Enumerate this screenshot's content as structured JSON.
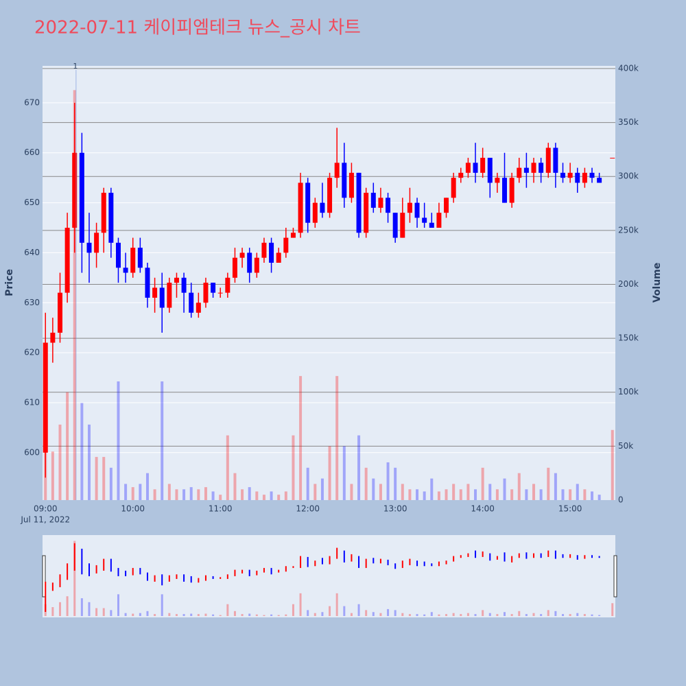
{
  "chart_data": {
    "type": "candlestick",
    "title": "2022-07-11 케이피엠테크 뉴스_공시 차트",
    "title_color": "#ef4a5b",
    "y_title": "Price",
    "y2_title": "Volume",
    "x_date_label": "Jul 11, 2022",
    "increasing_color": "#ff0000",
    "decreasing_color": "#0000ff",
    "x": [
      "09:00",
      "09:05",
      "09:10",
      "09:15",
      "09:20",
      "09:25",
      "09:30",
      "09:35",
      "09:40",
      "09:45",
      "09:50",
      "09:55",
      "10:00",
      "10:05",
      "10:10",
      "10:15",
      "10:20",
      "10:25",
      "10:30",
      "10:35",
      "10:40",
      "10:45",
      "10:50",
      "10:55",
      "11:00",
      "11:05",
      "11:10",
      "11:15",
      "11:20",
      "11:25",
      "11:30",
      "11:35",
      "11:40",
      "11:45",
      "11:50",
      "11:55",
      "12:00",
      "12:05",
      "12:10",
      "12:15",
      "12:20",
      "12:25",
      "12:30",
      "12:35",
      "12:40",
      "12:45",
      "12:50",
      "12:55",
      "13:00",
      "13:05",
      "13:10",
      "13:15",
      "13:20",
      "13:25",
      "13:30",
      "13:35",
      "13:40",
      "13:45",
      "13:50",
      "13:55",
      "14:00",
      "14:05",
      "14:10",
      "14:15",
      "14:20",
      "14:25",
      "14:30",
      "14:35",
      "14:40",
      "14:45",
      "14:50",
      "14:55",
      "15:00",
      "15:05",
      "15:10",
      "15:15",
      "15:20",
      "15:29"
    ],
    "open": [
      600,
      622,
      624,
      632,
      645,
      660,
      642,
      640,
      644,
      652,
      642,
      637,
      636,
      641,
      637,
      631,
      633,
      629,
      634,
      635,
      632,
      628,
      630,
      634,
      632,
      632,
      635,
      639,
      640,
      636,
      639,
      642,
      638,
      640,
      643,
      644,
      654,
      646,
      650,
      648,
      655,
      658,
      651,
      656,
      644,
      652,
      649,
      651,
      648,
      643,
      648,
      650,
      647,
      646,
      645,
      648,
      651,
      655,
      656,
      658,
      656,
      659,
      654,
      655,
      650,
      655,
      657,
      656,
      658,
      656,
      661,
      656,
      655,
      656,
      654,
      656,
      655,
      659
    ],
    "high": [
      628,
      627,
      636,
      648,
      670,
      664,
      648,
      646,
      653,
      653,
      643,
      640,
      643,
      643,
      638,
      635,
      636,
      635,
      636,
      636,
      634,
      632,
      635,
      634,
      633,
      636,
      641,
      641,
      641,
      640,
      643,
      643,
      641,
      645,
      645,
      656,
      655,
      651,
      654,
      656,
      665,
      662,
      658,
      656,
      653,
      654,
      653,
      652,
      648,
      651,
      653,
      651,
      650,
      648,
      650,
      651,
      656,
      657,
      659,
      662,
      661,
      659,
      656,
      660,
      656,
      659,
      660,
      659,
      659,
      662,
      662,
      658,
      658,
      657,
      657,
      657,
      656,
      659
    ],
    "low": [
      595,
      618,
      622,
      630,
      640,
      636,
      634,
      637,
      640,
      639,
      634,
      634,
      635,
      636,
      629,
      628,
      624,
      628,
      631,
      628,
      627,
      627,
      629,
      631,
      631,
      631,
      634,
      637,
      634,
      635,
      638,
      636,
      638,
      639,
      643,
      643,
      644,
      645,
      647,
      647,
      653,
      649,
      650,
      643,
      643,
      648,
      648,
      646,
      642,
      643,
      646,
      645,
      645,
      645,
      645,
      647,
      650,
      654,
      655,
      654,
      655,
      651,
      652,
      650,
      649,
      654,
      653,
      654,
      654,
      655,
      653,
      654,
      654,
      652,
      653,
      654,
      654,
      659
    ],
    "close": [
      622,
      624,
      632,
      645,
      660,
      642,
      640,
      644,
      652,
      642,
      637,
      636,
      641,
      637,
      631,
      633,
      629,
      634,
      635,
      632,
      628,
      630,
      634,
      632,
      632,
      635,
      639,
      640,
      636,
      639,
      642,
      638,
      640,
      643,
      644,
      654,
      646,
      650,
      648,
      655,
      658,
      651,
      656,
      644,
      652,
      649,
      651,
      648,
      643,
      648,
      650,
      647,
      646,
      645,
      648,
      651,
      655,
      656,
      658,
      656,
      659,
      654,
      655,
      650,
      655,
      657,
      656,
      658,
      656,
      661,
      656,
      655,
      656,
      654,
      656,
      655,
      654,
      659
    ],
    "volume": [
      60000,
      45000,
      70000,
      100000,
      380000,
      90000,
      70000,
      40000,
      40000,
      30000,
      110000,
      15000,
      12000,
      15000,
      25000,
      10000,
      110000,
      15000,
      10000,
      10000,
      12000,
      10000,
      12000,
      8000,
      5000,
      60000,
      25000,
      10000,
      12000,
      8000,
      5000,
      8000,
      5000,
      8000,
      60000,
      115000,
      30000,
      15000,
      20000,
      50000,
      115000,
      50000,
      15000,
      60000,
      30000,
      20000,
      15000,
      35000,
      30000,
      15000,
      10000,
      10000,
      8000,
      20000,
      8000,
      10000,
      15000,
      10000,
      15000,
      10000,
      30000,
      15000,
      10000,
      20000,
      10000,
      25000,
      10000,
      15000,
      10000,
      30000,
      25000,
      10000,
      10000,
      15000,
      10000,
      8000,
      5000,
      65000
    ],
    "annotation": {
      "x": "09:21",
      "text": "1"
    },
    "xlim": [
      "08:58",
      "15:31"
    ],
    "xticks": [
      "09:00",
      "10:00",
      "11:00",
      "12:00",
      "13:00",
      "14:00",
      "15:00"
    ],
    "ylim": [
      590.5,
      677.4
    ],
    "yticks": [
      600,
      610,
      620,
      630,
      640,
      650,
      660,
      670
    ],
    "y2lim": [
      0,
      402500
    ],
    "y2ticks": [
      0,
      {
        "value": 50000,
        "label": "50k"
      },
      {
        "value": 100000,
        "label": "100k"
      },
      {
        "value": 150000,
        "label": "150k"
      },
      {
        "value": 200000,
        "label": "200k"
      },
      {
        "value": 250000,
        "label": "250k"
      },
      {
        "value": 300000,
        "label": "300k"
      },
      {
        "value": 350000,
        "label": "350k"
      },
      {
        "value": 400000,
        "label": "400k"
      }
    ]
  }
}
